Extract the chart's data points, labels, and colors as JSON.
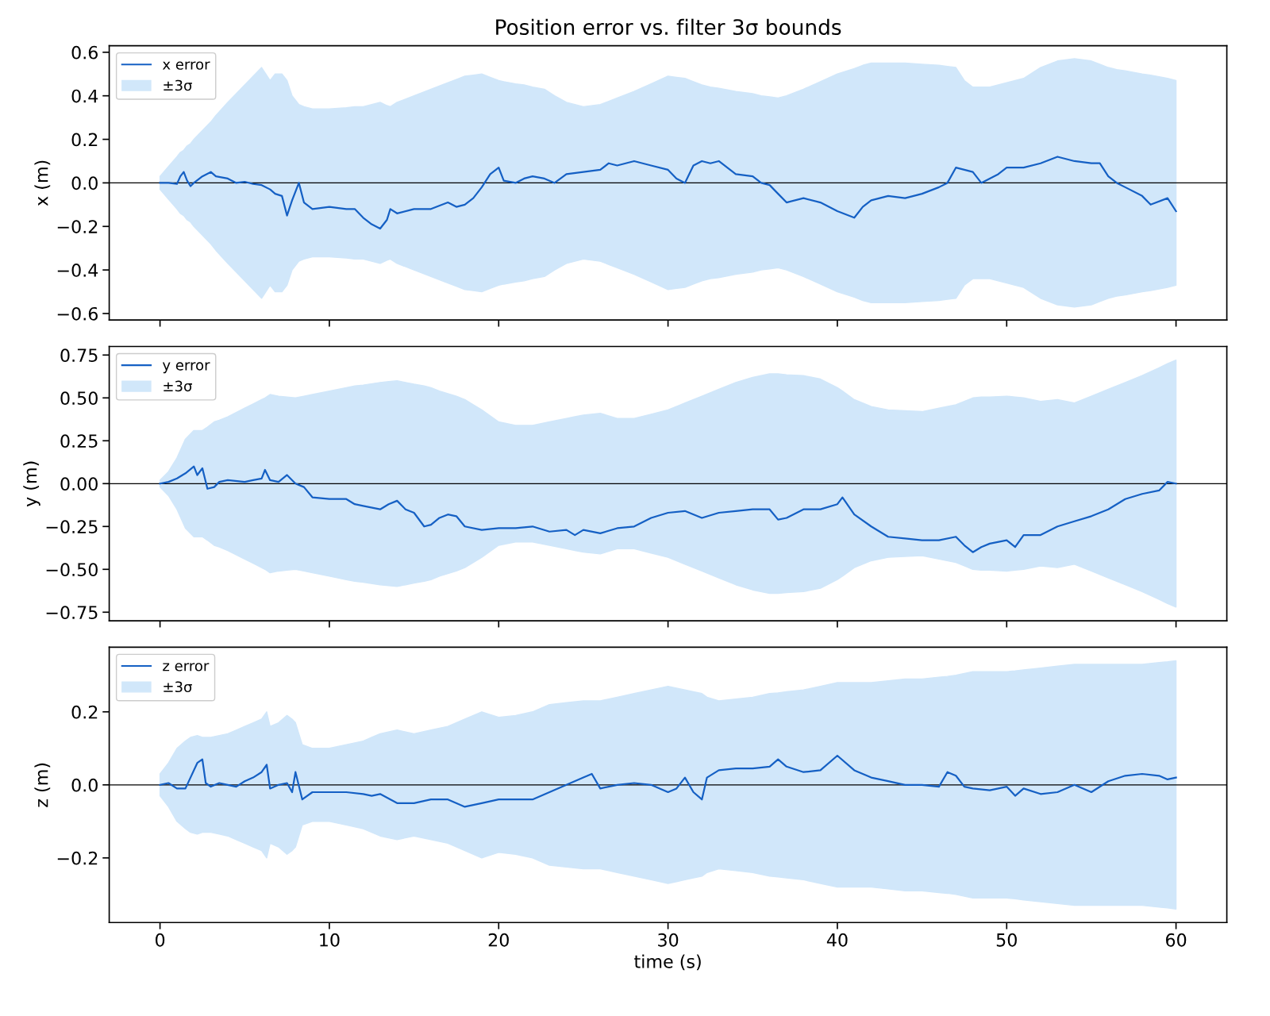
{
  "chart_data": [
    {
      "type": "line",
      "title": "Position error vs. filter 3σ bounds",
      "ylabel": "x (m)",
      "xlim": [
        -3,
        63
      ],
      "xticks": [
        0,
        10,
        20,
        30,
        40,
        50,
        60
      ],
      "ylim": [
        -0.63,
        0.63
      ],
      "yticks": [
        {
          "value": -0.6,
          "label": "−0.6"
        },
        {
          "value": -0.4,
          "label": "−0.4"
        },
        {
          "value": -0.2,
          "label": "−0.2"
        },
        {
          "value": 0,
          "label": "0.0"
        },
        {
          "value": 0.2,
          "label": "0.2"
        },
        {
          "value": 0.4,
          "label": "0.4"
        },
        {
          "value": 0.6,
          "label": "0.6"
        }
      ],
      "tick_labels": "y",
      "legend": "top left",
      "grid": false,
      "ref_lines": [
        {
          "axis": "y",
          "value": 0,
          "color": "#000000"
        }
      ],
      "series": [
        {
          "name": "x error",
          "color": "#1560c4",
          "x": [
            0,
            0.5,
            1,
            1.2,
            1.4,
            1.6,
            1.8,
            2,
            2.5,
            3,
            3.3,
            4,
            4.5,
            5,
            5.5,
            6,
            6.5,
            6.8,
            7.2,
            7.5,
            7.8,
            8.2,
            8.5,
            9,
            10,
            11,
            11.5,
            12,
            12.5,
            13,
            13.4,
            13.6,
            14,
            15,
            16,
            17,
            17.5,
            18,
            18.5,
            19,
            19.5,
            20,
            20.3,
            21,
            21.5,
            22,
            22.7,
            23.3,
            24,
            25,
            26,
            26.5,
            27,
            28,
            29,
            30,
            30.5,
            31,
            31.5,
            32,
            32.5,
            33,
            34,
            35,
            35.5,
            36,
            36.5,
            37,
            38,
            39,
            40,
            41,
            41.5,
            42,
            43,
            44,
            45,
            46,
            46.5,
            47,
            47.5,
            48,
            48.5,
            49,
            49.5,
            50,
            51,
            52,
            53,
            54,
            55,
            55.5,
            56,
            56.5,
            57,
            58,
            58.5,
            59.5,
            60
          ],
          "values": [
            0,
            0,
            -0.005,
            0.03,
            0.05,
            0.01,
            -0.015,
            0,
            0.03,
            0.05,
            0.03,
            0.02,
            0,
            0.005,
            -0.005,
            -0.01,
            -0.03,
            -0.05,
            -0.06,
            -0.15,
            -0.08,
            0,
            -0.09,
            -0.12,
            -0.11,
            -0.12,
            -0.12,
            -0.16,
            -0.19,
            -0.21,
            -0.17,
            -0.12,
            -0.14,
            -0.12,
            -0.12,
            -0.09,
            -0.11,
            -0.1,
            -0.07,
            -0.02,
            0.04,
            0.07,
            0.01,
            0,
            0.02,
            0.03,
            0.02,
            0,
            0.04,
            0.05,
            0.06,
            0.09,
            0.08,
            0.1,
            0.08,
            0.06,
            0.02,
            0,
            0.08,
            0.1,
            0.09,
            0.1,
            0.04,
            0.03,
            0,
            -0.01,
            -0.05,
            -0.09,
            -0.07,
            -0.09,
            -0.13,
            -0.16,
            -0.11,
            -0.08,
            -0.06,
            -0.07,
            -0.05,
            -0.02,
            0,
            0.07,
            0.06,
            0.05,
            0,
            0.02,
            0.04,
            0.07,
            0.07,
            0.09,
            0.12,
            0.1,
            0.09,
            0.09,
            0.03,
            0,
            -0.02,
            -0.06,
            -0.1,
            -0.07,
            -0.13
          ],
          "upper": [
            0.03,
            0.075,
            0.12,
            0.14,
            0.15,
            0.17,
            0.18,
            0.2,
            0.24,
            0.28,
            0.31,
            0.37,
            0.41,
            0.45,
            0.49,
            0.53,
            0.47,
            0.5,
            0.5,
            0.47,
            0.4,
            0.36,
            0.35,
            0.34,
            0.34,
            0.345,
            0.35,
            0.35,
            0.36,
            0.37,
            0.355,
            0.35,
            0.37,
            0.4,
            0.43,
            0.46,
            0.475,
            0.49,
            0.495,
            0.5,
            0.485,
            0.47,
            0.465,
            0.455,
            0.45,
            0.44,
            0.43,
            0.4,
            0.37,
            0.35,
            0.36,
            0.375,
            0.39,
            0.42,
            0.455,
            0.49,
            0.485,
            0.48,
            0.465,
            0.45,
            0.44,
            0.435,
            0.42,
            0.41,
            0.4,
            0.395,
            0.39,
            0.4,
            0.43,
            0.465,
            0.5,
            0.525,
            0.54,
            0.55,
            0.55,
            0.55,
            0.545,
            0.54,
            0.535,
            0.53,
            0.47,
            0.44,
            0.44,
            0.44,
            0.45,
            0.46,
            0.48,
            0.53,
            0.56,
            0.57,
            0.56,
            0.545,
            0.53,
            0.52,
            0.515,
            0.5,
            0.495,
            0.48,
            0.47
          ],
          "lower": [
            -0.03,
            -0.075,
            -0.12,
            -0.14,
            -0.15,
            -0.17,
            -0.18,
            -0.2,
            -0.24,
            -0.28,
            -0.31,
            -0.37,
            -0.41,
            -0.45,
            -0.49,
            -0.53,
            -0.47,
            -0.5,
            -0.5,
            -0.47,
            -0.4,
            -0.36,
            -0.35,
            -0.34,
            -0.34,
            -0.345,
            -0.35,
            -0.35,
            -0.36,
            -0.37,
            -0.355,
            -0.35,
            -0.37,
            -0.4,
            -0.43,
            -0.46,
            -0.475,
            -0.49,
            -0.495,
            -0.5,
            -0.485,
            -0.47,
            -0.465,
            -0.455,
            -0.45,
            -0.44,
            -0.43,
            -0.4,
            -0.37,
            -0.35,
            -0.36,
            -0.375,
            -0.39,
            -0.42,
            -0.455,
            -0.49,
            -0.485,
            -0.48,
            -0.465,
            -0.45,
            -0.44,
            -0.435,
            -0.42,
            -0.41,
            -0.4,
            -0.395,
            -0.39,
            -0.4,
            -0.43,
            -0.465,
            -0.5,
            -0.525,
            -0.54,
            -0.55,
            -0.55,
            -0.55,
            -0.545,
            -0.54,
            -0.535,
            -0.53,
            -0.47,
            -0.44,
            -0.44,
            -0.44,
            -0.45,
            -0.46,
            -0.48,
            -0.53,
            -0.56,
            -0.57,
            -0.56,
            -0.545,
            -0.53,
            -0.52,
            -0.515,
            -0.5,
            -0.495,
            -0.48,
            -0.47
          ]
        },
        {
          "name": "±3σ",
          "type": "area",
          "color": "#d1e7fa"
        }
      ]
    },
    {
      "type": "line",
      "ylabel": "y (m)",
      "xlim": [
        -3,
        63
      ],
      "xticks": [
        0,
        10,
        20,
        30,
        40,
        50,
        60
      ],
      "ylim": [
        -0.8,
        0.8
      ],
      "yticks": [
        {
          "value": -0.75,
          "label": "−0.75"
        },
        {
          "value": -0.5,
          "label": "−0.50"
        },
        {
          "value": -0.25,
          "label": "−0.25"
        },
        {
          "value": 0,
          "label": "0.00"
        },
        {
          "value": 0.25,
          "label": "0.25"
        },
        {
          "value": 0.5,
          "label": "0.50"
        },
        {
          "value": 0.75,
          "label": "0.75"
        }
      ],
      "tick_labels": "y",
      "legend": "top left",
      "grid": false,
      "ref_lines": [
        {
          "axis": "y",
          "value": 0,
          "color": "#000000"
        }
      ],
      "series": [
        {
          "name": "y error",
          "color": "#1560c4",
          "x": [
            0,
            0.5,
            1,
            1.5,
            2,
            2.2,
            2.5,
            2.8,
            3.2,
            3.5,
            4,
            5,
            5.5,
            6,
            6.2,
            6.5,
            7,
            7.5,
            8,
            8.5,
            9,
            10,
            11,
            11.5,
            12,
            13,
            13.5,
            14,
            14.5,
            15,
            15.6,
            16,
            16.5,
            17,
            17.5,
            18,
            19,
            20,
            21,
            22,
            23,
            24,
            24.5,
            25,
            26,
            27,
            28,
            29,
            30,
            31,
            32,
            33,
            34,
            35,
            36,
            36.5,
            37,
            38,
            39,
            40,
            40.3,
            41,
            42,
            43,
            44,
            45,
            46,
            47,
            47.5,
            48,
            48.5,
            49,
            50,
            50.5,
            51,
            52,
            53,
            54,
            55,
            56,
            57,
            58,
            59,
            59.5,
            60
          ],
          "values": [
            0,
            0.01,
            0.03,
            0.06,
            0.1,
            0.05,
            0.09,
            -0.03,
            -0.02,
            0.01,
            0.02,
            0.01,
            0.02,
            0.03,
            0.08,
            0.02,
            0.01,
            0.05,
            0,
            -0.02,
            -0.08,
            -0.09,
            -0.09,
            -0.12,
            -0.13,
            -0.15,
            -0.12,
            -0.1,
            -0.15,
            -0.17,
            -0.25,
            -0.24,
            -0.2,
            -0.18,
            -0.19,
            -0.25,
            -0.27,
            -0.26,
            -0.26,
            -0.25,
            -0.28,
            -0.27,
            -0.3,
            -0.27,
            -0.29,
            -0.26,
            -0.25,
            -0.2,
            -0.17,
            -0.16,
            -0.2,
            -0.17,
            -0.16,
            -0.15,
            -0.15,
            -0.21,
            -0.2,
            -0.15,
            -0.15,
            -0.12,
            -0.08,
            -0.18,
            -0.25,
            -0.31,
            -0.32,
            -0.33,
            -0.33,
            -0.31,
            -0.36,
            -0.4,
            -0.37,
            -0.35,
            -0.33,
            -0.37,
            -0.3,
            -0.3,
            -0.25,
            -0.22,
            -0.19,
            -0.15,
            -0.09,
            -0.06,
            -0.04,
            0.01,
            0
          ],
          "upper": [
            0.02,
            0.07,
            0.15,
            0.26,
            0.31,
            0.31,
            0.31,
            0.33,
            0.36,
            0.37,
            0.39,
            0.44,
            0.465,
            0.49,
            0.5,
            0.52,
            0.51,
            0.505,
            0.5,
            0.51,
            0.52,
            0.54,
            0.56,
            0.57,
            0.575,
            0.59,
            0.595,
            0.6,
            0.59,
            0.58,
            0.57,
            0.56,
            0.54,
            0.525,
            0.51,
            0.49,
            0.43,
            0.36,
            0.34,
            0.34,
            0.36,
            0.38,
            0.39,
            0.4,
            0.41,
            0.38,
            0.38,
            0.405,
            0.43,
            0.47,
            0.51,
            0.55,
            0.59,
            0.62,
            0.64,
            0.64,
            0.635,
            0.63,
            0.61,
            0.56,
            0.54,
            0.49,
            0.45,
            0.43,
            0.425,
            0.42,
            0.44,
            0.46,
            0.48,
            0.5,
            0.505,
            0.505,
            0.51,
            0.505,
            0.5,
            0.48,
            0.49,
            0.47,
            0.51,
            0.55,
            0.59,
            0.63,
            0.675,
            0.7,
            0.72
          ],
          "lower": [
            -0.02,
            -0.07,
            -0.15,
            -0.26,
            -0.31,
            -0.31,
            -0.31,
            -0.33,
            -0.36,
            -0.37,
            -0.39,
            -0.44,
            -0.465,
            -0.49,
            -0.5,
            -0.52,
            -0.51,
            -0.505,
            -0.5,
            -0.51,
            -0.52,
            -0.54,
            -0.56,
            -0.57,
            -0.575,
            -0.59,
            -0.595,
            -0.6,
            -0.59,
            -0.58,
            -0.57,
            -0.56,
            -0.54,
            -0.525,
            -0.51,
            -0.49,
            -0.43,
            -0.36,
            -0.34,
            -0.34,
            -0.36,
            -0.38,
            -0.39,
            -0.4,
            -0.41,
            -0.38,
            -0.38,
            -0.405,
            -0.43,
            -0.47,
            -0.51,
            -0.55,
            -0.59,
            -0.62,
            -0.64,
            -0.64,
            -0.635,
            -0.63,
            -0.61,
            -0.56,
            -0.54,
            -0.49,
            -0.45,
            -0.43,
            -0.425,
            -0.42,
            -0.44,
            -0.46,
            -0.48,
            -0.5,
            -0.505,
            -0.505,
            -0.51,
            -0.505,
            -0.5,
            -0.48,
            -0.49,
            -0.47,
            -0.51,
            -0.55,
            -0.59,
            -0.63,
            -0.675,
            -0.7,
            -0.72
          ]
        },
        {
          "name": "±3σ",
          "type": "area",
          "color": "#d1e7fa"
        }
      ]
    },
    {
      "type": "line",
      "xlabel": "time (s)",
      "ylabel": "z (m)",
      "xlim": [
        -3,
        63
      ],
      "xticks": [
        0,
        10,
        20,
        30,
        40,
        50,
        60
      ],
      "ylim": [
        -0.377,
        0.377
      ],
      "yticks": [
        {
          "value": -0.2,
          "label": "−0.2"
        },
        {
          "value": 0,
          "label": "0.0"
        },
        {
          "value": 0.2,
          "label": "0.2"
        }
      ],
      "legend": "top left",
      "grid": false,
      "ref_lines": [
        {
          "axis": "y",
          "value": 0,
          "color": "#000000"
        }
      ],
      "series": [
        {
          "name": "z error",
          "color": "#1560c4",
          "x": [
            0,
            0.5,
            1,
            1.5,
            1.8,
            2.2,
            2.5,
            2.7,
            3,
            3.5,
            4,
            4.5,
            5,
            5.5,
            6,
            6.3,
            6.5,
            7,
            7.5,
            7.8,
            8,
            8.4,
            9,
            10,
            11,
            12,
            12.5,
            13,
            14,
            15,
            16,
            17,
            18,
            19,
            20,
            21,
            22,
            23,
            24,
            25,
            25.5,
            26,
            27,
            28,
            29,
            30,
            30.5,
            31,
            31.5,
            32,
            32.3,
            33,
            34,
            35,
            36,
            36.5,
            37,
            38,
            39,
            40,
            41,
            42,
            43,
            44,
            45,
            46,
            46.5,
            47,
            47.5,
            48,
            49,
            50,
            50.5,
            51,
            52,
            53,
            54,
            55,
            56,
            57,
            58,
            59,
            59.5,
            60
          ],
          "values": [
            0,
            0.005,
            -0.01,
            -0.01,
            0.02,
            0.06,
            0.07,
            0.005,
            -0.005,
            0.005,
            0,
            -0.005,
            0.01,
            0.02,
            0.035,
            0.055,
            -0.01,
            0,
            0.005,
            -0.02,
            0.035,
            -0.04,
            -0.02,
            -0.02,
            -0.02,
            -0.025,
            -0.03,
            -0.025,
            -0.05,
            -0.05,
            -0.04,
            -0.04,
            -0.06,
            -0.05,
            -0.04,
            -0.04,
            -0.04,
            -0.02,
            0,
            0.02,
            0.03,
            -0.01,
            0,
            0.005,
            0,
            -0.02,
            -0.01,
            0.02,
            -0.02,
            -0.04,
            0.02,
            0.04,
            0.045,
            0.045,
            0.05,
            0.07,
            0.05,
            0.035,
            0.04,
            0.08,
            0.04,
            0.02,
            0.01,
            0,
            0,
            -0.005,
            0.035,
            0.025,
            -0.005,
            -0.01,
            -0.015,
            -0.005,
            -0.03,
            -0.01,
            -0.025,
            -0.02,
            0,
            -0.02,
            0.01,
            0.025,
            0.03,
            0.025,
            0.015,
            0.02
          ],
          "upper": [
            0.03,
            0.06,
            0.1,
            0.12,
            0.13,
            0.135,
            0.13,
            0.13,
            0.13,
            0.135,
            0.14,
            0.15,
            0.16,
            0.17,
            0.18,
            0.2,
            0.16,
            0.17,
            0.19,
            0.18,
            0.17,
            0.11,
            0.1,
            0.1,
            0.11,
            0.12,
            0.13,
            0.14,
            0.15,
            0.14,
            0.15,
            0.16,
            0.18,
            0.2,
            0.185,
            0.19,
            0.2,
            0.22,
            0.225,
            0.23,
            0.23,
            0.23,
            0.24,
            0.25,
            0.26,
            0.27,
            0.265,
            0.26,
            0.255,
            0.25,
            0.24,
            0.23,
            0.235,
            0.24,
            0.25,
            0.252,
            0.255,
            0.26,
            0.27,
            0.28,
            0.28,
            0.28,
            0.285,
            0.29,
            0.29,
            0.295,
            0.297,
            0.3,
            0.305,
            0.31,
            0.31,
            0.31,
            0.312,
            0.315,
            0.32,
            0.325,
            0.33,
            0.33,
            0.33,
            0.33,
            0.33,
            0.335,
            0.337,
            0.34
          ],
          "lower": [
            -0.03,
            -0.06,
            -0.1,
            -0.12,
            -0.13,
            -0.135,
            -0.13,
            -0.13,
            -0.13,
            -0.135,
            -0.14,
            -0.15,
            -0.16,
            -0.17,
            -0.18,
            -0.2,
            -0.16,
            -0.17,
            -0.19,
            -0.18,
            -0.17,
            -0.11,
            -0.1,
            -0.1,
            -0.11,
            -0.12,
            -0.13,
            -0.14,
            -0.15,
            -0.14,
            -0.15,
            -0.16,
            -0.18,
            -0.2,
            -0.185,
            -0.19,
            -0.2,
            -0.22,
            -0.225,
            -0.23,
            -0.23,
            -0.23,
            -0.24,
            -0.25,
            -0.26,
            -0.27,
            -0.265,
            -0.26,
            -0.255,
            -0.25,
            -0.24,
            -0.23,
            -0.235,
            -0.24,
            -0.25,
            -0.252,
            -0.255,
            -0.26,
            -0.27,
            -0.28,
            -0.28,
            -0.28,
            -0.285,
            -0.29,
            -0.29,
            -0.295,
            -0.297,
            -0.3,
            -0.305,
            -0.31,
            -0.31,
            -0.31,
            -0.312,
            -0.315,
            -0.32,
            -0.325,
            -0.33,
            -0.33,
            -0.33,
            -0.33,
            -0.33,
            -0.335,
            -0.337,
            -0.34
          ]
        },
        {
          "name": "±3σ",
          "type": "area",
          "color": "#d1e7fa"
        }
      ]
    }
  ]
}
